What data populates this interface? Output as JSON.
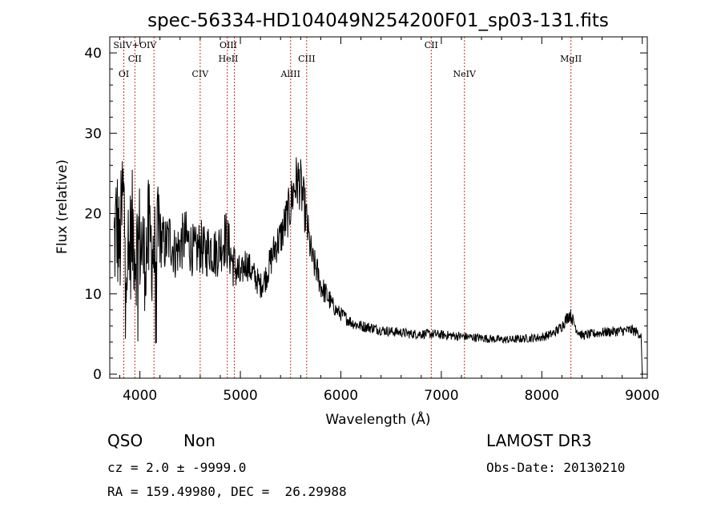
{
  "chart_data": {
    "type": "line",
    "title": "spec-56334-HD104049N254200F01_sp03-131.fits",
    "xlabel": "Wavelength (Å)",
    "ylabel": "Flux (relative)",
    "xlim": [
      3700,
      9050
    ],
    "ylim": [
      -0.5,
      42
    ],
    "x_ticks": [
      4000,
      5000,
      6000,
      7000,
      8000,
      9000
    ],
    "y_ticks": [
      0,
      10,
      20,
      30,
      40
    ],
    "grid": false,
    "series": [
      {
        "x": [
          3740,
          3770,
          3800,
          3830,
          3860,
          3880,
          3900,
          3930,
          3960,
          3990,
          4020,
          4050,
          4080,
          4110,
          4150,
          4200,
          4250,
          4300,
          4350,
          4400,
          4450,
          4500,
          4550,
          4600,
          4650,
          4700,
          4750,
          4800,
          4850,
          4880,
          4920,
          4960,
          5000,
          5050,
          5100,
          5150,
          5200,
          5250,
          5300,
          5350,
          5400,
          5450,
          5500,
          5530,
          5560,
          5590,
          5620,
          5650,
          5680,
          5720,
          5760,
          5800,
          5850,
          5900,
          5950,
          6000,
          6050,
          6100,
          6150,
          6200,
          6300,
          6400,
          6500,
          6600,
          6700,
          6800,
          6900,
          7000,
          7100,
          7200,
          7300,
          7400,
          7500,
          7600,
          7700,
          7800,
          7900,
          8000,
          8100,
          8150,
          8200,
          8250,
          8280,
          8300,
          8350,
          8400,
          8500,
          8600,
          8700,
          8800,
          8900,
          8950,
          8990
        ],
        "y": [
          16,
          19,
          15,
          22,
          17,
          12,
          16,
          18,
          15,
          17,
          16,
          14,
          17,
          16,
          15,
          17,
          16,
          17,
          15,
          16,
          17,
          16,
          15,
          16,
          15,
          16,
          15,
          16,
          17,
          16,
          14,
          13,
          12,
          14,
          13,
          12,
          11,
          12,
          14,
          16,
          17,
          19,
          21,
          23,
          24,
          24,
          22,
          20,
          17,
          14,
          13,
          11,
          10,
          9,
          8,
          7.5,
          7,
          6.5,
          6.2,
          6,
          5.8,
          5.5,
          5.3,
          5.2,
          5,
          5,
          5,
          4.9,
          4.8,
          4.7,
          4.6,
          4.5,
          4.4,
          4.3,
          4.3,
          4.4,
          4.5,
          4.6,
          5,
          5.4,
          6,
          7,
          7.5,
          7,
          5.5,
          4.8,
          5,
          5.2,
          5.3,
          5.4,
          5.5,
          5.2,
          4.8
        ]
      }
    ],
    "line_markers": [
      {
        "label": "OI",
        "x": 3840,
        "row": 3
      },
      {
        "label": "SiIV+OIV",
        "x": 3950,
        "row": 0
      },
      {
        "label": "CII",
        "x": 3950,
        "row": 1
      },
      {
        "label": "CIV",
        "x": 4600,
        "row": 3
      },
      {
        "label": "OIII",
        "x": 4880,
        "row": 0
      },
      {
        "label": "HeII",
        "x": 4880,
        "row": 1
      },
      {
        "label": "AlIII",
        "x": 5500,
        "row": 3
      },
      {
        "label": "CIII",
        "x": 5660,
        "row": 1
      },
      {
        "label": "CII",
        "x": 6900,
        "row": 0
      },
      {
        "label": "NeIV",
        "x": 7230,
        "row": 3
      },
      {
        "label": "MgII",
        "x": 8290,
        "row": 1
      }
    ],
    "marker_positions": [
      3840,
      3950,
      4140,
      4600,
      4870,
      4940,
      5500,
      5660,
      6900,
      7230,
      8290
    ]
  },
  "info": {
    "class": "QSO",
    "subclass": "Non",
    "cz": "cz = 2.0 ± -9999.0",
    "radec": "RA = 159.49980, DEC =  26.29988",
    "survey": "LAMOST DR3",
    "obsdate": "Obs-Date: 20130210"
  }
}
